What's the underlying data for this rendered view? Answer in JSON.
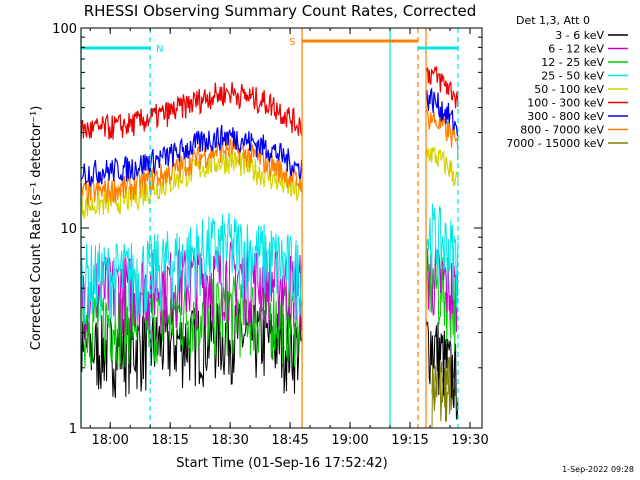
{
  "chart_data": {
    "type": "line",
    "title": "RHESSI Observing Summary Count Rates, Corrected",
    "xlabel": "Start Time (01-Sep-16 17:52:42)",
    "ylabel": "Corrected Count Rate (s⁻¹ detector⁻¹)",
    "y_scale": "log",
    "ylim": [
      1,
      100
    ],
    "xlim": [
      "17:52:42",
      "19:33:00"
    ],
    "x_ticks": [
      "18:00",
      "18:15",
      "18:30",
      "18:45",
      "19:00",
      "19:15",
      "19:30"
    ],
    "y_ticks": [
      "1",
      "10",
      "100"
    ],
    "legend_header": "Det 1,3, Att 0",
    "series": [
      {
        "name": "3 - 6 keV",
        "color": "#000000",
        "x": [
          "17:55",
          "18:05",
          "18:15",
          "18:25",
          "18:30",
          "18:40",
          "18:47",
          "19:20",
          "19:25",
          "19:27"
        ],
        "y": [
          2.5,
          2.6,
          2.7,
          2.9,
          3.0,
          2.8,
          2.6,
          2.8,
          2.0,
          1.8
        ]
      },
      {
        "name": "6 - 12 keV",
        "color": "#cc00cc",
        "x": [
          "17:55",
          "18:05",
          "18:15",
          "18:25",
          "18:30",
          "18:40",
          "18:47",
          "19:20",
          "19:25",
          "19:27"
        ],
        "y": [
          5.0,
          5.1,
          5.4,
          5.8,
          6.0,
          5.5,
          5.2,
          6.0,
          5.2,
          4.6
        ]
      },
      {
        "name": "12 - 25 keV",
        "color": "#00cc00",
        "x": [
          "17:55",
          "18:05",
          "18:15",
          "18:25",
          "18:30",
          "18:40",
          "18:47",
          "19:20",
          "19:25",
          "19:27"
        ],
        "y": [
          3.5,
          3.6,
          3.7,
          3.9,
          4.0,
          3.8,
          3.6,
          5.5,
          4.6,
          4.0
        ]
      },
      {
        "name": "25 - 50 keV",
        "color": "#00e5e5",
        "x": [
          "17:55",
          "18:05",
          "18:15",
          "18:25",
          "18:30",
          "18:40",
          "18:47",
          "19:20",
          "19:25",
          "19:27"
        ],
        "y": [
          5.8,
          6.0,
          6.8,
          8.0,
          8.3,
          7.2,
          6.2,
          9.5,
          8.0,
          7.0
        ]
      },
      {
        "name": "50 - 100 keV",
        "color": "#d4d400",
        "x": [
          "17:55",
          "18:05",
          "18:15",
          "18:25",
          "18:30",
          "18:40",
          "18:47",
          "19:20",
          "19:25",
          "19:27"
        ],
        "y": [
          13,
          14,
          17,
          21,
          22,
          18,
          15,
          24,
          20,
          17
        ]
      },
      {
        "name": "100 - 300 keV",
        "color": "#ee0000",
        "x": [
          "17:55",
          "18:05",
          "18:15",
          "18:25",
          "18:30",
          "18:40",
          "18:47",
          "19:20",
          "19:25",
          "19:27"
        ],
        "y": [
          31,
          33,
          38,
          46,
          48,
          42,
          33,
          60,
          50,
          44
        ]
      },
      {
        "name": "300 - 800 keV",
        "color": "#0000ee",
        "x": [
          "17:55",
          "18:05",
          "18:15",
          "18:25",
          "18:30",
          "18:40",
          "18:47",
          "19:20",
          "19:25",
          "19:27"
        ],
        "y": [
          19,
          20,
          23,
          28,
          29,
          25,
          20,
          45,
          36,
          31
        ]
      },
      {
        "name": "800 - 7000 keV",
        "color": "#ff7f00",
        "x": [
          "17:55",
          "18:05",
          "18:15",
          "18:25",
          "18:30",
          "18:40",
          "18:47",
          "19:20",
          "19:25",
          "19:27"
        ],
        "y": [
          15,
          16,
          19,
          24,
          25,
          21,
          17,
          36,
          30,
          25
        ]
      },
      {
        "name": "7000 - 15000 keV",
        "color": "#808000",
        "x": [
          "18:20",
          "18:30",
          "18:40",
          "19:21",
          "19:26"
        ],
        "y": [
          1.5,
          1.6,
          1.5,
          1.6,
          1.5
        ]
      }
    ],
    "annotations": [
      {
        "label": "N",
        "color": "#00e5e5",
        "x_start": "17:52:42",
        "x_end": "18:10"
      },
      {
        "label": "S",
        "color": "#ff7f00",
        "x_start": "18:48",
        "x_end": "19:17"
      },
      {
        "label": "",
        "color": "#00e5e5",
        "x_start": "19:17",
        "x_end": "19:27"
      }
    ],
    "vertical_lines": [
      {
        "x": "17:52:42",
        "color": "#00e5e5",
        "style": "solid"
      },
      {
        "x": "18:10",
        "color": "#00e5e5",
        "style": "dashed"
      },
      {
        "x": "18:48",
        "color": "#ff7f00",
        "style": "solid"
      },
      {
        "x": "19:10",
        "color": "#00e5e5",
        "style": "solid"
      },
      {
        "x": "19:17",
        "color": "#ff7f00",
        "style": "dashed"
      },
      {
        "x": "19:19",
        "color": "#ff7f00",
        "style": "solid"
      },
      {
        "x": "19:27",
        "color": "#00e5e5",
        "style": "dashed"
      }
    ],
    "grid": false,
    "legend_placement": "right"
  },
  "footer": {
    "timestamp": "1-Sep-2022 09:28"
  }
}
